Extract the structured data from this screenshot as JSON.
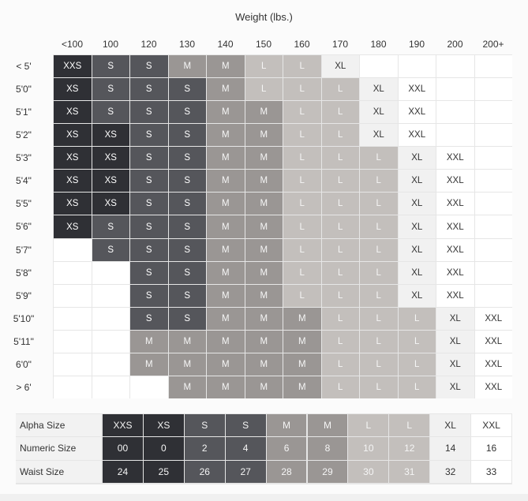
{
  "title": "Weight (lbs.)",
  "weights": [
    "<100",
    "100",
    "120",
    "130",
    "140",
    "150",
    "160",
    "170",
    "180",
    "190",
    "200",
    "200+"
  ],
  "heights": [
    "< 5'",
    "5'0\"",
    "5'1\"",
    "5'2\"",
    "5'3\"",
    "5'4\"",
    "5'5\"",
    "5'6\"",
    "5'7\"",
    "5'8\"",
    "5'9\"",
    "5'10\"",
    "5'11\"",
    "6'0\"",
    "> 6'"
  ],
  "grid": [
    [
      "XXS",
      "S",
      "S",
      "M",
      "M",
      "L",
      "L",
      "XL",
      "",
      "",
      "",
      ""
    ],
    [
      "XS",
      "S",
      "S",
      "S",
      "M",
      "L",
      "L",
      "L",
      "XL",
      "XXL",
      "",
      ""
    ],
    [
      "XS",
      "S",
      "S",
      "S",
      "M",
      "M",
      "L",
      "L",
      "XL",
      "XXL",
      "",
      ""
    ],
    [
      "XS",
      "XS",
      "S",
      "S",
      "M",
      "M",
      "L",
      "L",
      "XL",
      "XXL",
      "",
      ""
    ],
    [
      "XS",
      "XS",
      "S",
      "S",
      "M",
      "M",
      "L",
      "L",
      "L",
      "XL",
      "XXL",
      ""
    ],
    [
      "XS",
      "XS",
      "S",
      "S",
      "M",
      "M",
      "L",
      "L",
      "L",
      "XL",
      "XXL",
      ""
    ],
    [
      "XS",
      "XS",
      "S",
      "S",
      "M",
      "M",
      "L",
      "L",
      "L",
      "XL",
      "XXL",
      ""
    ],
    [
      "XS",
      "S",
      "S",
      "S",
      "M",
      "M",
      "L",
      "L",
      "L",
      "XL",
      "XXL",
      ""
    ],
    [
      "",
      "S",
      "S",
      "S",
      "M",
      "M",
      "L",
      "L",
      "L",
      "XL",
      "XXL",
      ""
    ],
    [
      "",
      "",
      "S",
      "S",
      "M",
      "M",
      "L",
      "L",
      "L",
      "XL",
      "XXL",
      ""
    ],
    [
      "",
      "",
      "S",
      "S",
      "M",
      "M",
      "L",
      "L",
      "L",
      "XL",
      "XXL",
      ""
    ],
    [
      "",
      "",
      "S",
      "S",
      "M",
      "M",
      "M",
      "L",
      "L",
      "L",
      "XL",
      "XXL"
    ],
    [
      "",
      "",
      "M",
      "M",
      "M",
      "M",
      "M",
      "L",
      "L",
      "L",
      "XL",
      "XXL"
    ],
    [
      "",
      "",
      "M",
      "M",
      "M",
      "M",
      "M",
      "L",
      "L",
      "L",
      "XL",
      "XXL"
    ],
    [
      "",
      "",
      "",
      "M",
      "M",
      "M",
      "M",
      "L",
      "L",
      "L",
      "XL",
      "XXL"
    ]
  ],
  "legend": {
    "rows": [
      {
        "label": "Alpha Size",
        "values": [
          "XXS",
          "XS",
          "S",
          "S",
          "M",
          "M",
          "L",
          "L",
          "XL",
          "XXL"
        ]
      },
      {
        "label": "Numeric Size",
        "values": [
          "00",
          "0",
          "2",
          "4",
          "6",
          "8",
          "10",
          "12",
          "14",
          "16"
        ]
      },
      {
        "label": "Waist Size",
        "values": [
          "24",
          "25",
          "26",
          "27",
          "28",
          "29",
          "30",
          "31",
          "32",
          "33"
        ]
      }
    ]
  },
  "colors": {
    "XXS": "#2f3035",
    "XS": "#2f3035",
    "S": "#55565b",
    "M": "#9a9694",
    "L": "#c3bfbc",
    "XL": "#f1f1f1",
    "XXL": "#ffffff",
    "empty": "#ffffff",
    "legend": [
      "#2f3035",
      "#2f3035",
      "#55565b",
      "#55565b",
      "#9a9694",
      "#9a9694",
      "#c3bfbc",
      "#c3bfbc",
      "#f1f1f1",
      "#ffffff"
    ]
  }
}
